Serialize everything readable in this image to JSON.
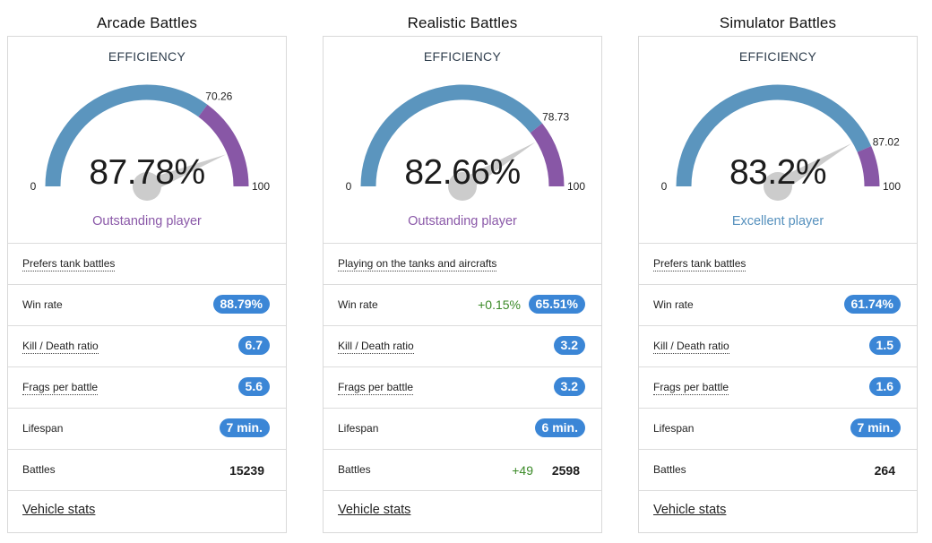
{
  "columns": [
    {
      "title": "Arcade Battles",
      "efficiency_label": "EFFICIENCY",
      "gauge": {
        "value_text": "87.78%",
        "value": 87.78,
        "threshold": 70.26,
        "threshold_text": "70.26",
        "min_text": "0",
        "max_text": "100"
      },
      "rating": "Outstanding player",
      "rating_color": "#8a58a8",
      "preference": "Prefers tank battles",
      "win_rate": {
        "label": "Win rate",
        "value": "88.79%",
        "delta": ""
      },
      "kd": {
        "label": "Kill / Death ratio",
        "value": "6.7"
      },
      "frags": {
        "label": "Frags per battle",
        "value": "5.6"
      },
      "lifespan": {
        "label": "Lifespan",
        "value": "7 min."
      },
      "battles": {
        "label": "Battles",
        "value": "15239",
        "delta": ""
      },
      "vehicle_link": "Vehicle stats"
    },
    {
      "title": "Realistic Battles",
      "efficiency_label": "EFFICIENCY",
      "gauge": {
        "value_text": "82.66%",
        "value": 82.66,
        "threshold": 78.73,
        "threshold_text": "78.73",
        "min_text": "0",
        "max_text": "100"
      },
      "rating": "Outstanding player",
      "rating_color": "#8a58a8",
      "preference": "Playing on the tanks and aircrafts",
      "win_rate": {
        "label": "Win rate",
        "value": "65.51%",
        "delta": "+0.15%"
      },
      "kd": {
        "label": "Kill / Death ratio",
        "value": "3.2"
      },
      "frags": {
        "label": "Frags per battle",
        "value": "3.2"
      },
      "lifespan": {
        "label": "Lifespan",
        "value": "6 min."
      },
      "battles": {
        "label": "Battles",
        "value": "2598",
        "delta": "+49"
      },
      "vehicle_link": "Vehicle stats"
    },
    {
      "title": "Simulator Battles",
      "efficiency_label": "EFFICIENCY",
      "gauge": {
        "value_text": "83.2%",
        "value": 83.2,
        "threshold": 87.02,
        "threshold_text": "87.02",
        "min_text": "0",
        "max_text": "100"
      },
      "rating": "Excellent player",
      "rating_color": "#5590bd",
      "preference": "Prefers tank battles",
      "win_rate": {
        "label": "Win rate",
        "value": "61.74%",
        "delta": ""
      },
      "kd": {
        "label": "Kill / Death ratio",
        "value": "1.5"
      },
      "frags": {
        "label": "Frags per battle",
        "value": "1.6"
      },
      "lifespan": {
        "label": "Lifespan",
        "value": "7 min."
      },
      "battles": {
        "label": "Battles",
        "value": "264",
        "delta": ""
      },
      "vehicle_link": "Vehicle stats"
    }
  ],
  "colors": {
    "gauge_blue": "#5b95be",
    "gauge_purple": "#8857a6",
    "pill_blue": "#3b86d6",
    "delta_green": "#3b8a28",
    "needle": "#cccccc"
  }
}
